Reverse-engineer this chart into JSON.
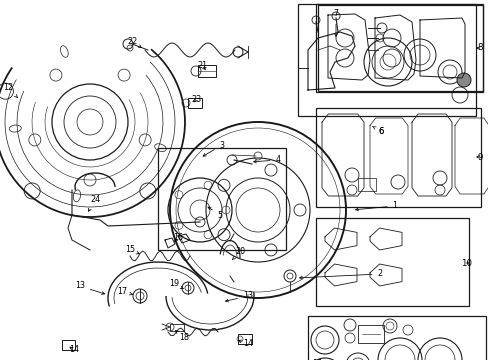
{
  "bg": "#ffffff",
  "lc": "#1a1a1a",
  "figsize": [
    4.89,
    3.6
  ],
  "dpi": 100,
  "boxes": {
    "b7": [
      298,
      4,
      180,
      115
    ],
    "b35": [
      158,
      148,
      130,
      105
    ],
    "b8": [
      316,
      10,
      170,
      88
    ],
    "b9": [
      316,
      108,
      170,
      100
    ],
    "b10": [
      316,
      218,
      155,
      90
    ],
    "b11": [
      308,
      316,
      178,
      100
    ]
  },
  "label_positions": {
    "1": [
      390,
      205,
      "left"
    ],
    "2": [
      380,
      272,
      "left"
    ],
    "3": [
      222,
      148,
      "center"
    ],
    "4": [
      278,
      163,
      "left"
    ],
    "5": [
      220,
      210,
      "center"
    ],
    "6": [
      376,
      130,
      "center"
    ],
    "7": [
      335,
      14,
      "center"
    ],
    "8": [
      484,
      54,
      "right"
    ],
    "9": [
      484,
      158,
      "right"
    ],
    "10": [
      468,
      263,
      "right"
    ],
    "11": [
      312,
      366,
      "left"
    ],
    "12": [
      8,
      90,
      "left"
    ],
    "13": [
      78,
      282,
      "left"
    ],
    "13b": [
      248,
      295,
      "left"
    ],
    "14": [
      246,
      342,
      "left"
    ],
    "14b": [
      72,
      348,
      "left"
    ],
    "15": [
      130,
      248,
      "left"
    ],
    "16": [
      178,
      238,
      "left"
    ],
    "17": [
      122,
      290,
      "left"
    ],
    "18": [
      184,
      336,
      "left"
    ],
    "19": [
      174,
      282,
      "left"
    ],
    "20": [
      240,
      252,
      "left"
    ],
    "21": [
      200,
      68,
      "left"
    ],
    "22": [
      132,
      44,
      "left"
    ],
    "23": [
      194,
      100,
      "left"
    ],
    "24": [
      94,
      202,
      "left"
    ]
  }
}
